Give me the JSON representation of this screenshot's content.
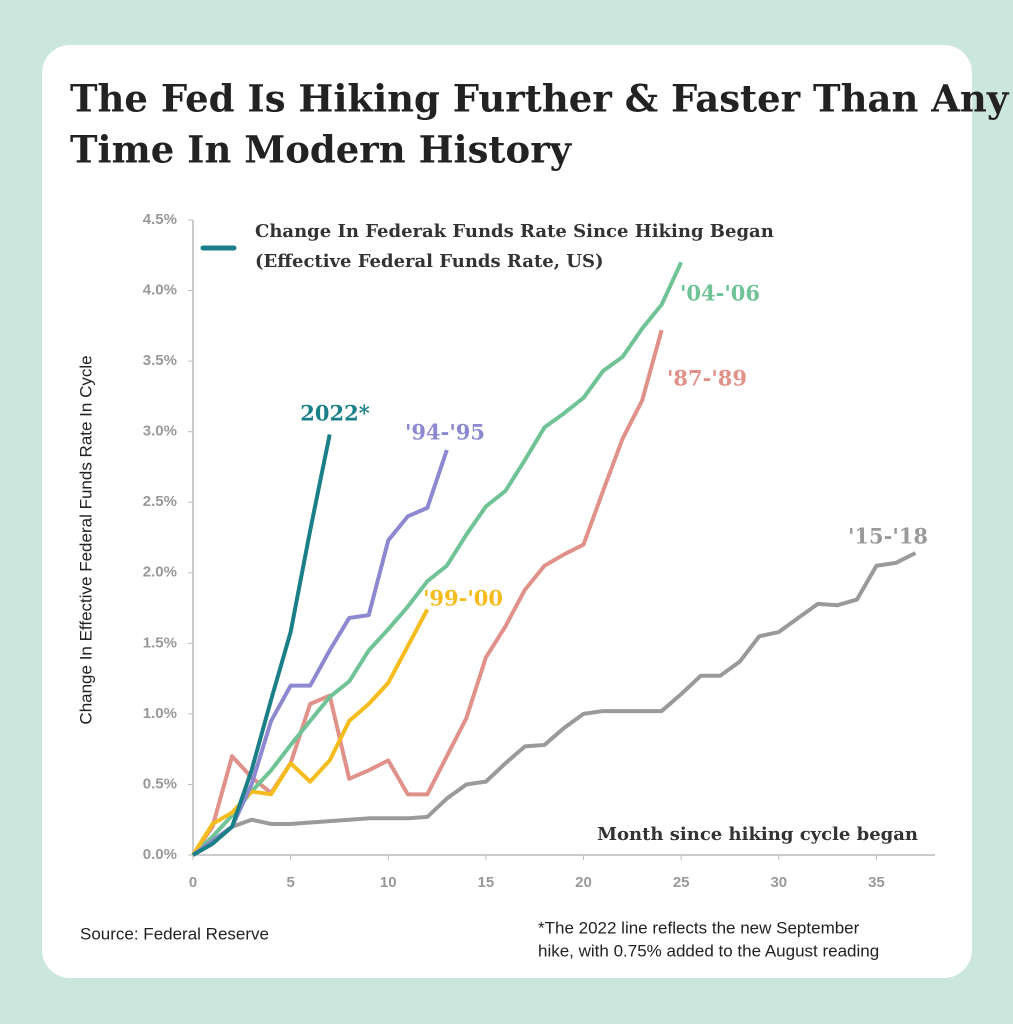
{
  "chart_data": {
    "type": "line",
    "title": [
      "The Fed Is Hiking Further & Faster Than Any",
      "Time In Modern History"
    ],
    "legend_text": [
      "Change In Federak Funds Rate Since Hiking Began",
      "(Effective Federal Funds Rate, US)"
    ],
    "x_label": "Month since hiking cycle began",
    "y_label": "Change In Effective Federal Funds Rate In Cycle",
    "source": "Source: Federal Reserve",
    "footnote": [
      "*The 2022 line reflects the new September",
      "hike, with 0.75% added to the August reading"
    ],
    "xlim": [
      0,
      38
    ],
    "xticks": [
      0,
      5,
      10,
      15,
      20,
      25,
      30,
      35
    ],
    "ylim": [
      0,
      4.5
    ],
    "yticks": [
      {
        "value": 0,
        "label": "0.0%"
      },
      {
        "value": 0.5,
        "label": "0.5%"
      },
      {
        "value": 1,
        "label": "1.0%"
      },
      {
        "value": 1.5,
        "label": "1.5%"
      },
      {
        "value": 2,
        "label": "2.0%"
      },
      {
        "value": 2.5,
        "label": "2.5%"
      },
      {
        "value": 3,
        "label": "3.0%"
      },
      {
        "value": 3.5,
        "label": "3.5%"
      },
      {
        "value": 4,
        "label": "4.0%"
      },
      {
        "value": 4.5,
        "label": "4.5%"
      }
    ],
    "series": [
      {
        "name": "'15-'18",
        "color": "#9a9a9a",
        "x": [
          0,
          1,
          2,
          3,
          4,
          5,
          6,
          7,
          8,
          9,
          10,
          11,
          12,
          13,
          14,
          15,
          16,
          17,
          18,
          19,
          20,
          21,
          22,
          23,
          24,
          25,
          26,
          27,
          28,
          29,
          30,
          31,
          32,
          33,
          34,
          35,
          36,
          37
        ],
        "values": [
          0,
          0.1,
          0.2,
          0.25,
          0.22,
          0.22,
          0.23,
          0.24,
          0.25,
          0.26,
          0.26,
          0.26,
          0.27,
          0.4,
          0.5,
          0.52,
          0.65,
          0.77,
          0.78,
          0.9,
          1.0,
          1.02,
          1.02,
          1.02,
          1.02,
          1.14,
          1.27,
          1.27,
          1.37,
          1.55,
          1.58,
          1.68,
          1.78,
          1.77,
          1.81,
          2.05,
          2.07,
          2.14
        ]
      },
      {
        "name": "'87-'89",
        "color": "#e0918a",
        "x": [
          0,
          1,
          2,
          3,
          4,
          5,
          6,
          7,
          8,
          9,
          10,
          11,
          12,
          13,
          14,
          15,
          16,
          17,
          18,
          19,
          20,
          21,
          22,
          23,
          24
        ],
        "values": [
          0,
          0.2,
          0.7,
          0.55,
          0.44,
          0.65,
          1.07,
          1.13,
          0.54,
          0.6,
          0.67,
          0.43,
          0.43,
          0.7,
          0.97,
          1.4,
          1.62,
          1.88,
          2.05,
          2.13,
          2.2,
          2.58,
          2.95,
          3.22,
          3.72
        ]
      },
      {
        "name": "'04-'06",
        "color": "#6fc396",
        "x": [
          0,
          1,
          2,
          3,
          4,
          5,
          6,
          7,
          8,
          9,
          10,
          11,
          12,
          13,
          14,
          15,
          16,
          17,
          18,
          19,
          20,
          21,
          22,
          23,
          24,
          25
        ],
        "values": [
          0,
          0.13,
          0.28,
          0.45,
          0.6,
          0.78,
          0.95,
          1.12,
          1.23,
          1.45,
          1.6,
          1.76,
          1.94,
          2.05,
          2.27,
          2.47,
          2.58,
          2.8,
          3.03,
          3.13,
          3.24,
          3.43,
          3.53,
          3.73,
          3.9,
          4.2
        ]
      },
      {
        "name": "'99-'00",
        "color": "#f5bc1e",
        "x": [
          0,
          1,
          2,
          3,
          4,
          5,
          6,
          7,
          8,
          9,
          10,
          11,
          12
        ],
        "values": [
          0,
          0.22,
          0.3,
          0.45,
          0.43,
          0.65,
          0.52,
          0.67,
          0.95,
          1.07,
          1.22,
          1.48,
          1.74
        ]
      },
      {
        "name": "'94-'95",
        "color": "#8d88cf",
        "x": [
          0,
          1,
          2,
          3,
          4,
          5,
          6,
          7,
          8,
          9,
          10,
          11,
          12,
          13
        ],
        "values": [
          0,
          0.1,
          0.2,
          0.5,
          0.95,
          1.2,
          1.2,
          1.45,
          1.68,
          1.7,
          2.23,
          2.4,
          2.46,
          2.87
        ]
      },
      {
        "name": "2022*",
        "color": "#1b7f87",
        "x": [
          0,
          1,
          2,
          3,
          4,
          5,
          6,
          7
        ],
        "values": [
          0,
          0.08,
          0.2,
          0.6,
          1.1,
          1.58,
          2.3,
          2.98
        ]
      }
    ]
  }
}
